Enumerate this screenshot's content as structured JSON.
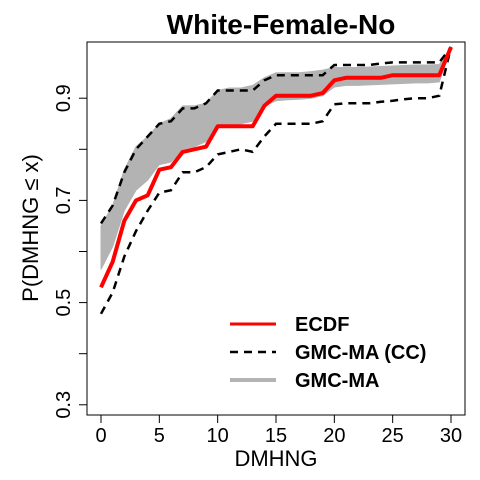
{
  "chart_data": {
    "type": "line",
    "title": "White-Female-No",
    "xlabel": "DMHNG",
    "ylabel": "P(DMHNG ≤ x)",
    "xlim": [
      -1.2,
      31.2
    ],
    "ylim": [
      0.28,
      1.01
    ],
    "x_ticks": [
      0,
      5,
      10,
      15,
      20,
      25,
      30
    ],
    "y_ticks": [
      0.3,
      0.4,
      0.5,
      0.6,
      0.7,
      0.8,
      0.9
    ],
    "y_tick_labels": [
      0.3,
      0.5,
      0.7,
      0.9
    ],
    "legend_position": "bottom-right",
    "colors": {
      "ecdf": "#ff0000",
      "band": "#b3b3b3",
      "cc": "#000000"
    },
    "series": [
      {
        "name": "ECDF",
        "style": "solid-red",
        "x": [
          0,
          1,
          2,
          3,
          4,
          5,
          6,
          7,
          8,
          9,
          10,
          11,
          12,
          13,
          14,
          15,
          16,
          17,
          18,
          19,
          20,
          21,
          22,
          23,
          24,
          25,
          26,
          27,
          28,
          29,
          30
        ],
        "y": [
          0.53,
          0.58,
          0.66,
          0.7,
          0.71,
          0.76,
          0.765,
          0.795,
          0.8,
          0.805,
          0.845,
          0.845,
          0.845,
          0.845,
          0.885,
          0.905,
          0.905,
          0.905,
          0.905,
          0.91,
          0.935,
          0.94,
          0.94,
          0.94,
          0.94,
          0.945,
          0.945,
          0.945,
          0.945,
          0.945,
          1.0
        ]
      },
      {
        "name": "GMC-MA (CC)",
        "style": "dashed-black",
        "x": [
          0,
          1,
          2,
          3,
          4,
          5,
          6,
          7,
          8,
          9,
          10,
          11,
          12,
          13,
          14,
          15,
          16,
          17,
          18,
          19,
          20,
          21,
          22,
          23,
          24,
          25,
          26,
          27,
          28,
          29,
          30
        ],
        "lower": [
          0.478,
          0.52,
          0.59,
          0.64,
          0.68,
          0.715,
          0.72,
          0.755,
          0.755,
          0.765,
          0.79,
          0.795,
          0.8,
          0.795,
          0.825,
          0.85,
          0.85,
          0.85,
          0.85,
          0.855,
          0.888,
          0.89,
          0.89,
          0.89,
          0.893,
          0.895,
          0.898,
          0.9,
          0.9,
          0.905,
          1.0
        ],
        "upper": [
          0.655,
          0.69,
          0.755,
          0.8,
          0.825,
          0.85,
          0.855,
          0.88,
          0.88,
          0.89,
          0.915,
          0.915,
          0.915,
          0.915,
          0.935,
          0.945,
          0.945,
          0.945,
          0.945,
          0.945,
          0.965,
          0.965,
          0.965,
          0.965,
          0.968,
          0.97,
          0.97,
          0.97,
          0.97,
          0.97,
          1.0
        ]
      },
      {
        "name": "GMC-MA",
        "style": "grey-band",
        "x": [
          0,
          1,
          2,
          3,
          4,
          5,
          6,
          7,
          8,
          9,
          10,
          11,
          12,
          13,
          14,
          15,
          16,
          17,
          18,
          19,
          20,
          21,
          22,
          23,
          24,
          25,
          26,
          27,
          28,
          29,
          30
        ],
        "lower": [
          0.565,
          0.61,
          0.68,
          0.72,
          0.74,
          0.77,
          0.775,
          0.8,
          0.805,
          0.815,
          0.845,
          0.848,
          0.85,
          0.855,
          0.885,
          0.895,
          0.897,
          0.898,
          0.9,
          0.905,
          0.922,
          0.925,
          0.925,
          0.926,
          0.927,
          0.928,
          0.929,
          0.93,
          0.93,
          0.932,
          1.0
        ],
        "upper": [
          0.65,
          0.69,
          0.76,
          0.805,
          0.825,
          0.85,
          0.86,
          0.885,
          0.885,
          0.89,
          0.915,
          0.92,
          0.92,
          0.925,
          0.94,
          0.95,
          0.95,
          0.95,
          0.952,
          0.955,
          0.96,
          0.96,
          0.96,
          0.961,
          0.962,
          0.963,
          0.964,
          0.965,
          0.965,
          0.966,
          1.0
        ]
      }
    ],
    "legend": [
      "ECDF",
      "GMC-MA (CC)",
      "GMC-MA"
    ]
  }
}
